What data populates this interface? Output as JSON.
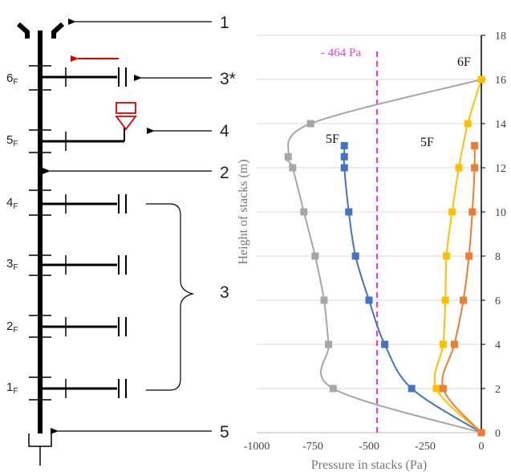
{
  "diagram": {
    "floors": [
      {
        "num": "1",
        "sub": "F"
      },
      {
        "num": "2",
        "sub": "F"
      },
      {
        "num": "3",
        "sub": "F"
      },
      {
        "num": "4",
        "sub": "F"
      },
      {
        "num": "5",
        "sub": "F"
      },
      {
        "num": "6",
        "sub": "F"
      }
    ],
    "callouts": {
      "c1": "1",
      "c3star": "3*",
      "c4": "4",
      "c2": "2",
      "c3": "3",
      "c5": "5"
    },
    "colors": {
      "pipe": "#000000",
      "flow_arrow": "#e00000",
      "trap": "#e00000"
    },
    "icons": [
      "vent-cap-icon",
      "flow-arrow-icon",
      "trap-icon",
      "brace-icon"
    ]
  },
  "chart_data": {
    "type": "line",
    "xlabel": "Pressure in stacks (Pa)",
    "ylabel": "Height of stacks (m)",
    "xlim": [
      -1000,
      0
    ],
    "ylim": [
      0,
      18
    ],
    "x_ticks": [
      -1000,
      -750,
      -500,
      -250,
      0
    ],
    "y_ticks": [
      0,
      2,
      4,
      6,
      8,
      10,
      12,
      14,
      16,
      18
    ],
    "y_axis_side": "right",
    "grid": "horizontal",
    "reference_line": {
      "x": -464,
      "label": "- 464 Pa",
      "color": "#e040e0",
      "style": "dashed"
    },
    "annotations": [
      {
        "text": "6F",
        "near_series": "gray"
      },
      {
        "text": "5F",
        "near_series": "blue"
      },
      {
        "text": "5F",
        "near_series": "yellow"
      }
    ],
    "series": [
      {
        "color": "#a6a6a6",
        "x": [
          0,
          -660,
          -680,
          -700,
          -740,
          -790,
          -840,
          -860,
          -760,
          0
        ],
        "y": [
          0,
          2,
          4,
          6,
          8,
          10,
          12,
          12.5,
          14,
          16
        ]
      },
      {
        "color": "#4472c4",
        "x": [
          0,
          -310,
          -430,
          -500,
          -560,
          -590,
          -610,
          -610,
          -610
        ],
        "y": [
          0,
          2,
          4,
          6,
          8,
          10,
          12,
          12.5,
          13
        ]
      },
      {
        "color": "#ffc000",
        "x": [
          0,
          -200,
          -170,
          -160,
          -155,
          -130,
          -100,
          -60,
          0
        ],
        "y": [
          0,
          2,
          4,
          6,
          8,
          10,
          12,
          14,
          16
        ]
      },
      {
        "color": "#ed7d31",
        "x": [
          0,
          -170,
          -120,
          -80,
          -55,
          -40,
          -30,
          -30
        ],
        "y": [
          0,
          2,
          4,
          6,
          8,
          10,
          12,
          13
        ]
      }
    ]
  }
}
